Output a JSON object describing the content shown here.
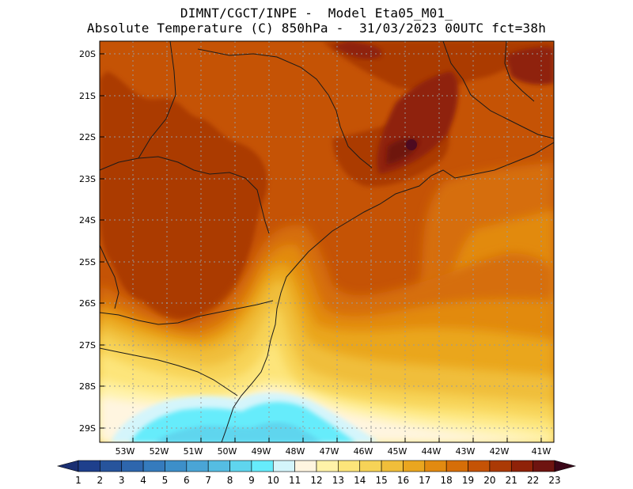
{
  "header": {
    "line1": "DIMNT/CGCT/INPE -  Model Eta05_M01_",
    "line2": "Absolute Temperature (C) 850hPa -  31/03/2023 00UTC fct=38h"
  },
  "map": {
    "lon_min": -53.8,
    "lon_max": -40.45,
    "lat_min": -29.4,
    "lat_max": -19.8,
    "lat_ticks": [
      {
        "value": -20,
        "label": "20S"
      },
      {
        "value": -21,
        "label": "21S"
      },
      {
        "value": -22,
        "label": "22S"
      },
      {
        "value": -23,
        "label": "23S"
      },
      {
        "value": -24,
        "label": "24S"
      },
      {
        "value": -25,
        "label": "25S"
      },
      {
        "value": -26,
        "label": "26S"
      },
      {
        "value": -27,
        "label": "27S"
      },
      {
        "value": -28,
        "label": "28S"
      },
      {
        "value": -29,
        "label": "29S"
      }
    ],
    "lon_ticks": [
      {
        "value": -53,
        "label": "53W"
      },
      {
        "value": -52,
        "label": "52W"
      },
      {
        "value": -51,
        "label": "51W"
      },
      {
        "value": -50,
        "label": "50W"
      },
      {
        "value": -49,
        "label": "49W"
      },
      {
        "value": -48,
        "label": "48W"
      },
      {
        "value": -47,
        "label": "47W"
      },
      {
        "value": -46,
        "label": "46W"
      },
      {
        "value": -45,
        "label": "45W"
      },
      {
        "value": -44,
        "label": "44W"
      },
      {
        "value": -43,
        "label": "43W"
      },
      {
        "value": -42,
        "label": "42W"
      },
      {
        "value": -41,
        "label": "41W"
      }
    ]
  },
  "colorbar": {
    "labels": [
      "1",
      "2",
      "3",
      "4",
      "5",
      "6",
      "7",
      "8",
      "9",
      "10",
      "11",
      "12",
      "13",
      "14",
      "15",
      "16",
      "17",
      "18",
      "19",
      "20",
      "21",
      "22",
      "23"
    ],
    "colors": [
      "#1e3f8c",
      "#27549c",
      "#2e66ad",
      "#357bbd",
      "#3d8fc9",
      "#4aa5d6",
      "#55bde2",
      "#5fd5ee",
      "#66ecfb",
      "#d4f5fb",
      "#fff5e0",
      "#fff2a8",
      "#fde57a",
      "#f7d357",
      "#f0be3a",
      "#eaa61f",
      "#e28a10",
      "#d66e08",
      "#c55305",
      "#ab3a05",
      "#8f2208",
      "#6e1410",
      "#4d0a20"
    ],
    "arrow_left_color": "#1a2f72",
    "arrow_right_color": "#3a0618"
  }
}
